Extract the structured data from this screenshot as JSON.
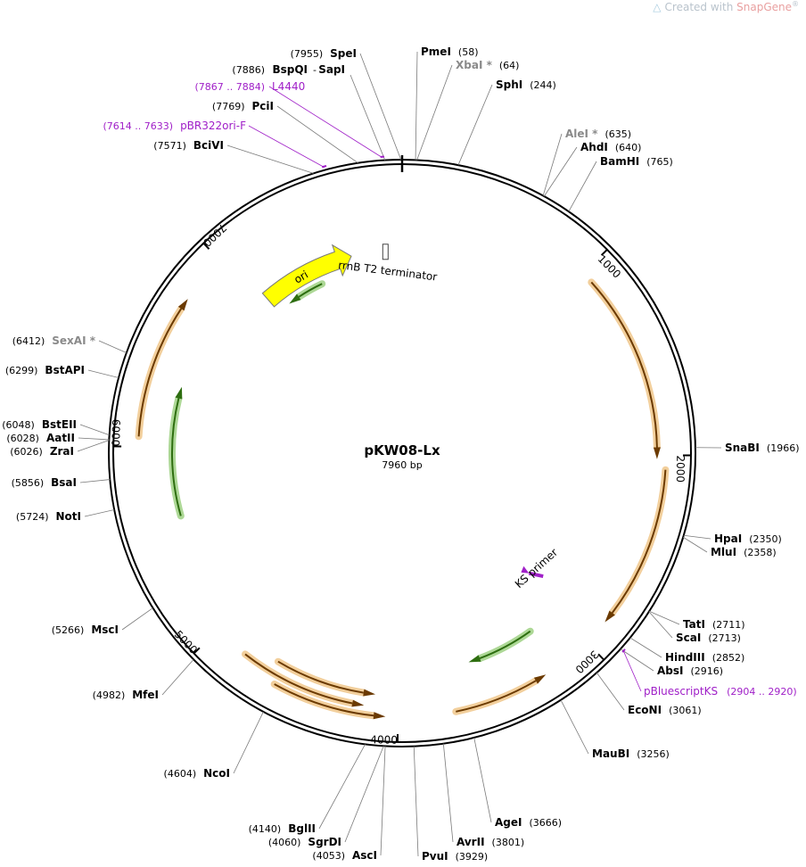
{
  "watermark": {
    "prefix": "Created with",
    "brand": "SnapGene",
    "mark": "®",
    "logo_icon": "snapgene-logo-icon"
  },
  "plasmid": {
    "name": "pKW08-Lx",
    "size_label": "7960 bp",
    "length": 7960
  },
  "ticks": [
    {
      "bp": 1000,
      "label": "1000"
    },
    {
      "bp": 2000,
      "label": "2000"
    },
    {
      "bp": 3000,
      "label": "3000"
    },
    {
      "bp": 4000,
      "label": "4000"
    },
    {
      "bp": 5000,
      "label": "5000"
    },
    {
      "bp": 6000,
      "label": "6000"
    },
    {
      "bp": 7000,
      "label": "7000"
    }
  ],
  "colors": {
    "ori": "#ffff00",
    "orange_feature": "#e8a84a",
    "green_feature": "#6ab840",
    "primer": "#a020c8",
    "star_site": "#8a8a8a"
  },
  "sites": [
    {
      "name": "SpeI",
      "pos": "(7955)",
      "bp": 7955,
      "star": false
    },
    {
      "name": "PmeI",
      "pos": "(58)",
      "bp": 58,
      "star": false
    },
    {
      "name": "XbaI *",
      "pos": "(64)",
      "bp": 64,
      "star": true
    },
    {
      "name": "SphI",
      "pos": "(244)",
      "bp": 244,
      "star": false
    },
    {
      "name": "AleI *",
      "pos": "(635)",
      "bp": 635,
      "star": true
    },
    {
      "name": "AhdI",
      "pos": "(640)",
      "bp": 640,
      "star": false
    },
    {
      "name": "BamHI",
      "pos": "(765)",
      "bp": 765,
      "star": false
    },
    {
      "name": "SnaBI",
      "pos": "(1966)",
      "bp": 1966,
      "star": false
    },
    {
      "name": "HpaI",
      "pos": "(2350)",
      "bp": 2350,
      "star": false
    },
    {
      "name": "MluI",
      "pos": "(2358)",
      "bp": 2358,
      "star": false
    },
    {
      "name": "TatI",
      "pos": "(2711)",
      "bp": 2711,
      "star": false
    },
    {
      "name": "ScaI",
      "pos": "(2713)",
      "bp": 2713,
      "star": false
    },
    {
      "name": "HindIII",
      "pos": "(2852)",
      "bp": 2852,
      "star": false
    },
    {
      "name": "AbsI",
      "pos": "(2916)",
      "bp": 2916,
      "star": false
    },
    {
      "name": "EcoNI",
      "pos": "(3061)",
      "bp": 3061,
      "star": false
    },
    {
      "name": "MauBI",
      "pos": "(3256)",
      "bp": 3256,
      "star": false
    },
    {
      "name": "AgeI",
      "pos": "(3666)",
      "bp": 3666,
      "star": false
    },
    {
      "name": "AvrII",
      "pos": "(3801)",
      "bp": 3801,
      "star": false
    },
    {
      "name": "PvuI",
      "pos": "(3929)",
      "bp": 3929,
      "star": false
    },
    {
      "name": "AscI",
      "pos": "(4053)",
      "bp": 4053,
      "star": false
    },
    {
      "name": "SgrDI",
      "pos": "(4060)",
      "bp": 4060,
      "star": false
    },
    {
      "name": "BglII",
      "pos": "(4140)",
      "bp": 4140,
      "star": false
    },
    {
      "name": "NcoI",
      "pos": "(4604)",
      "bp": 4604,
      "star": false
    },
    {
      "name": "MfeI",
      "pos": "(4982)",
      "bp": 4982,
      "star": false
    },
    {
      "name": "MscI",
      "pos": "(5266)",
      "bp": 5266,
      "star": false
    },
    {
      "name": "NotI",
      "pos": "(5724)",
      "bp": 5724,
      "star": false
    },
    {
      "name": "BsaI",
      "pos": "(5856)",
      "bp": 5856,
      "star": false
    },
    {
      "name": "ZraI",
      "pos": "(6026)",
      "bp": 6026,
      "star": false
    },
    {
      "name": "AatII",
      "pos": "(6028)",
      "bp": 6028,
      "star": false
    },
    {
      "name": "BstEII",
      "pos": "(6048)",
      "bp": 6048,
      "star": false
    },
    {
      "name": "BstAPI",
      "pos": "(6299)",
      "bp": 6299,
      "star": false
    },
    {
      "name": "SexAI *",
      "pos": "(6412)",
      "bp": 6412,
      "star": true
    },
    {
      "name": "BciVI",
      "pos": "(7571)",
      "bp": 7571,
      "star": false
    },
    {
      "name": "PciI",
      "pos": "(7769)",
      "bp": 7769,
      "star": false
    }
  ],
  "paired_site": {
    "first": "BspQI",
    "separator": "-",
    "second": "SapI",
    "pos": "(7886)",
    "bp": 7886
  },
  "primers": [
    {
      "name": "L4440",
      "pos": "(7867 .. 7884)",
      "start": 7867,
      "end": 7884,
      "strand": -1
    },
    {
      "name": "pBR322ori-F",
      "pos": "(7614 .. 7633)",
      "start": 7614,
      "end": 7633,
      "strand": 1
    },
    {
      "name": "pBluescriptKS",
      "pos": "(2904 .. 2920)",
      "start": 2904,
      "end": 2920,
      "strand": 1
    }
  ],
  "features": [
    {
      "label": "ori",
      "start": 7050,
      "end": 7640,
      "strand": 1,
      "kind": "ori"
    },
    {
      "label": "rrnB T2 terminator",
      "start": 7855,
      "end": 7880,
      "kind": "terminator"
    },
    {
      "label": "KS primer",
      "start": 2904,
      "end": 2920,
      "kind": "primer-inner"
    }
  ],
  "orange_arcs": [
    {
      "start": 1060,
      "end": 2020,
      "strand": 1,
      "r": 286
    },
    {
      "start": 2070,
      "end": 2870,
      "strand": 1,
      "r": 296
    },
    {
      "start": 3250,
      "end": 3720,
      "strand": -1,
      "r": 296
    },
    {
      "start": 4060,
      "end": 4620,
      "strand": -1,
      "r": 296
    },
    {
      "start": 4120,
      "end": 4660,
      "strand": -1,
      "r": 272
    },
    {
      "start": 4170,
      "end": 4820,
      "strand": -1,
      "r": 286
    },
    {
      "start": 6050,
      "end": 6760,
      "strand": 1,
      "r": 296
    }
  ],
  "green_arcs": [
    {
      "start": 7140,
      "end": 7400,
      "strand": -1,
      "r": 210
    },
    {
      "start": 7165,
      "end": 7435,
      "strand": -1,
      "r": 222
    },
    {
      "start": 5620,
      "end": 6340,
      "strand": 1,
      "r": 258
    },
    {
      "start": 3190,
      "end": 3590,
      "strand": 1,
      "r": 246
    }
  ]
}
